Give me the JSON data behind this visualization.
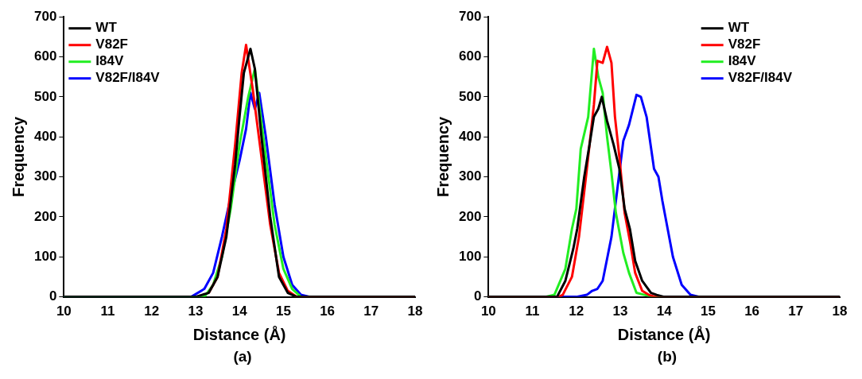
{
  "chart_data": [
    {
      "type": "line",
      "xlabel": "Distance (Å)",
      "ylabel": "Frequency",
      "annotations": [
        "(a)"
      ],
      "xlim": [
        10,
        18
      ],
      "ylim": [
        0,
        700
      ],
      "xticks": [
        10,
        11,
        12,
        13,
        14,
        15,
        16,
        17,
        18
      ],
      "yticks": [
        0,
        100,
        200,
        300,
        400,
        500,
        600,
        700
      ],
      "grid": false,
      "legend": "top left",
      "marker": "none",
      "line_style": "solid",
      "series": [
        {
          "name": "WT",
          "color": "#000000",
          "x": [
            10,
            13,
            13.3,
            13.5,
            13.7,
            13.9,
            14.0,
            14.1,
            14.25,
            14.35,
            14.5,
            14.7,
            14.9,
            15.1,
            15.3,
            18
          ],
          "values": [
            0,
            0,
            10,
            50,
            150,
            330,
            450,
            560,
            620,
            570,
            400,
            200,
            50,
            10,
            0,
            0
          ]
        },
        {
          "name": "V82F",
          "color": "#ff0000",
          "x": [
            13.3,
            13.5,
            13.7,
            13.9,
            14.05,
            14.15,
            14.3,
            14.5,
            14.7,
            14.9,
            15.1,
            15.3,
            18
          ],
          "values": [
            10,
            50,
            170,
            380,
            560,
            630,
            520,
            350,
            180,
            60,
            15,
            0,
            0
          ]
        },
        {
          "name": "I84V",
          "color": "#22ee22",
          "x": [
            10,
            13.2,
            13.4,
            13.6,
            13.8,
            14.0,
            14.1,
            14.2,
            14.35,
            14.45,
            14.6,
            14.8,
            15.0,
            15.2,
            15.4,
            18
          ],
          "values": [
            0,
            0,
            30,
            100,
            220,
            380,
            440,
            500,
            570,
            480,
            350,
            180,
            70,
            20,
            0,
            0
          ]
        },
        {
          "name": "V82F/I84V",
          "color": "#0000ff",
          "x": [
            10,
            12.9,
            13.2,
            13.4,
            13.6,
            13.8,
            14.0,
            14.15,
            14.25,
            14.35,
            14.45,
            14.6,
            14.8,
            15.0,
            15.2,
            15.4,
            15.6,
            18
          ],
          "values": [
            0,
            0,
            20,
            60,
            150,
            250,
            340,
            420,
            510,
            470,
            510,
            400,
            230,
            100,
            30,
            5,
            0,
            0
          ]
        }
      ]
    },
    {
      "type": "line",
      "xlabel": "Distance (Å)",
      "ylabel": "Frequency",
      "annotations": [
        "(b)"
      ],
      "xlim": [
        10,
        18
      ],
      "ylim": [
        0,
        700
      ],
      "xticks": [
        10,
        11,
        12,
        13,
        14,
        15,
        16,
        17,
        18
      ],
      "yticks": [
        0,
        100,
        200,
        300,
        400,
        500,
        600,
        700
      ],
      "grid": false,
      "legend": "top right",
      "marker": "none",
      "line_style": "solid",
      "series": [
        {
          "name": "WT",
          "color": "#000000",
          "x": [
            10,
            11.56,
            11.75,
            11.93,
            12.02,
            12.18,
            12.3,
            12.4,
            12.5,
            12.58,
            12.7,
            12.85,
            12.98,
            13.1,
            13.22,
            13.34,
            13.5,
            13.7,
            13.83,
            14.0,
            18
          ],
          "values": [
            0,
            0,
            40,
            120,
            170,
            300,
            380,
            450,
            470,
            500,
            440,
            380,
            320,
            220,
            170,
            90,
            40,
            10,
            5,
            0,
            0
          ]
        },
        {
          "name": "V82F",
          "color": "#ff0000",
          "x": [
            10,
            11.6,
            11.69,
            11.9,
            12.06,
            12.24,
            12.4,
            12.48,
            12.6,
            12.7,
            12.8,
            12.88,
            12.98,
            13.1,
            13.22,
            13.34,
            13.5,
            13.65,
            13.8,
            18
          ],
          "values": [
            0,
            0,
            5,
            50,
            150,
            320,
            480,
            590,
            585,
            625,
            585,
            450,
            350,
            210,
            140,
            60,
            15,
            5,
            0,
            0
          ]
        },
        {
          "name": "I84V",
          "color": "#22ee22",
          "x": [
            10,
            11.3,
            11.5,
            11.75,
            11.9,
            12.0,
            12.1,
            12.27,
            12.4,
            12.5,
            12.6,
            12.7,
            12.8,
            12.9,
            13.07,
            13.2,
            13.37,
            13.55,
            13.75,
            18
          ],
          "values": [
            0,
            0,
            5,
            70,
            170,
            220,
            370,
            450,
            620,
            550,
            510,
            400,
            310,
            210,
            110,
            60,
            10,
            5,
            0,
            0
          ]
        },
        {
          "name": "V82F/I84V",
          "color": "#0000ff",
          "x": [
            10,
            12.0,
            12.24,
            12.36,
            12.48,
            12.6,
            12.8,
            12.98,
            13.07,
            13.2,
            13.37,
            13.47,
            13.6,
            13.77,
            13.87,
            13.96,
            14.2,
            14.4,
            14.6,
            14.8,
            18
          ],
          "values": [
            0,
            0,
            5,
            15,
            20,
            40,
            150,
            310,
            390,
            430,
            505,
            500,
            450,
            320,
            300,
            240,
            100,
            30,
            5,
            0,
            0
          ]
        }
      ]
    }
  ]
}
